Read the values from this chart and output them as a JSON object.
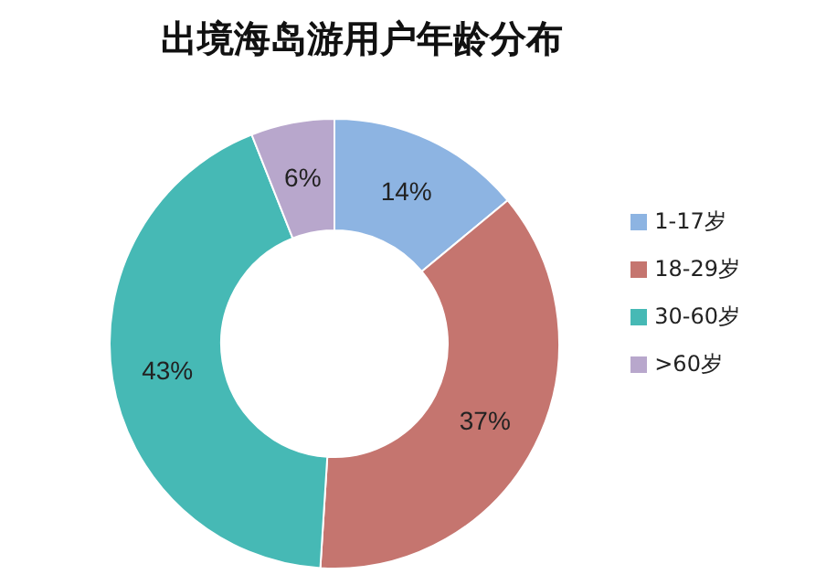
{
  "chart_data": {
    "type": "donut",
    "title": "出境海岛游用户年龄分布",
    "categories": [
      "1-17岁",
      "18-29岁",
      "30-60岁",
      ">60岁"
    ],
    "values": [
      14,
      37,
      43,
      6
    ],
    "colors": [
      "#8db4e2",
      "#c5756f",
      "#46b9b5",
      "#b8a7cc"
    ],
    "value_labels": [
      "14%",
      "37%",
      "43%",
      "6%"
    ],
    "legend": "right"
  }
}
